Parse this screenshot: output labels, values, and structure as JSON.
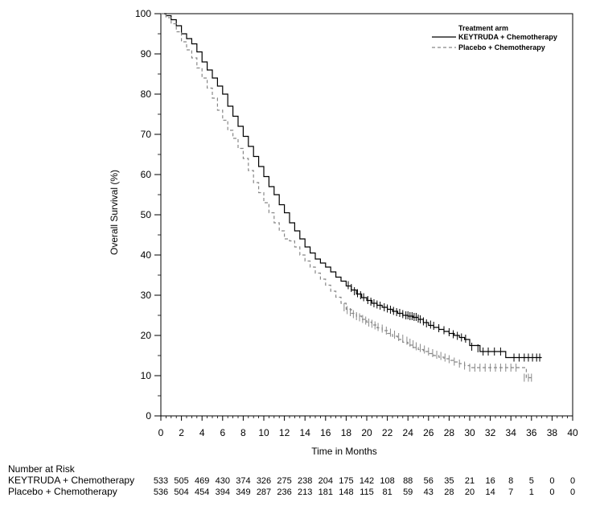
{
  "chart_data": {
    "type": "line",
    "subtype": "kaplan-meier",
    "xlabel": "Time in Months",
    "ylabel": "Overall Survival (%)",
    "xlim": [
      0,
      40
    ],
    "ylim": [
      0,
      100
    ],
    "xticks": [
      0,
      2,
      4,
      6,
      8,
      10,
      12,
      14,
      16,
      18,
      20,
      22,
      24,
      26,
      28,
      30,
      32,
      34,
      36,
      38,
      40
    ],
    "yticks": [
      0,
      10,
      20,
      30,
      40,
      50,
      60,
      70,
      80,
      90,
      100
    ],
    "legend": {
      "title": "Treatment arm",
      "placement": "top-right"
    },
    "series": [
      {
        "name": "KEYTRUDA + Chemotherapy",
        "color": "#000000",
        "line_style": "solid",
        "x": [
          0,
          0.5,
          1,
          1.5,
          2,
          2.5,
          3,
          3.5,
          4,
          4.5,
          5,
          5.5,
          6,
          6.5,
          7,
          7.5,
          8,
          8.5,
          9,
          9.5,
          10,
          10.5,
          11,
          11.5,
          12,
          12.5,
          13,
          13.5,
          14,
          14.5,
          15,
          15.5,
          16,
          16.5,
          17,
          17.5,
          18,
          18.5,
          19,
          19.5,
          20,
          20.5,
          21,
          21.5,
          22,
          22.5,
          23,
          23.5,
          24,
          24.5,
          25,
          25.5,
          26,
          26.5,
          27,
          27.5,
          28,
          28.5,
          29,
          29.5,
          30,
          31,
          32,
          33,
          33.5,
          34,
          35,
          36,
          37
        ],
        "y": [
          100,
          99.5,
          98.5,
          97,
          95,
          93.8,
          92.5,
          90.5,
          88,
          86,
          84,
          82,
          80,
          77,
          74.5,
          72,
          69.5,
          67,
          64.5,
          62,
          59.5,
          57,
          55,
          52.5,
          50.5,
          48,
          46,
          44,
          42,
          40.5,
          39,
          38,
          37,
          35.8,
          34.5,
          33.5,
          32.3,
          31.3,
          30.3,
          29.4,
          28.7,
          28,
          27.5,
          27,
          26.5,
          26,
          25.5,
          25,
          24.8,
          24.5,
          24,
          23.2,
          22.5,
          22,
          21.5,
          21,
          20.5,
          20,
          19.5,
          19,
          17.5,
          16,
          16,
          16,
          14.5,
          14.5,
          14.5,
          14.5,
          14.5
        ],
        "censor_x": [
          18.2,
          18.5,
          18.8,
          19.1,
          19.4,
          19.7,
          20.1,
          20.4,
          20.7,
          21.0,
          21.3,
          21.7,
          22.0,
          22.3,
          22.6,
          22.9,
          23.2,
          23.5,
          23.8,
          24.0,
          24.2,
          24.4,
          24.6,
          24.8,
          25.0,
          25.2,
          25.5,
          25.8,
          26.2,
          26.5,
          27.0,
          27.5,
          28.0,
          28.4,
          28.8,
          29.2,
          29.6,
          30.2,
          30.8,
          31.3,
          31.8,
          32.4,
          33.0,
          34.3,
          34.8,
          35.3,
          35.7,
          36.1,
          36.5,
          36.8
        ],
        "censor_y": [
          32.5,
          31.8,
          31.0,
          30.5,
          30.0,
          29.5,
          28.8,
          28.4,
          28.0,
          27.7,
          27.4,
          27.0,
          26.7,
          26.4,
          26.1,
          25.8,
          25.6,
          25.3,
          25.0,
          25.0,
          24.8,
          24.8,
          24.6,
          24.6,
          24.2,
          24.0,
          23.5,
          23.0,
          22.7,
          22.4,
          21.8,
          21.3,
          20.8,
          20.3,
          19.9,
          19.5,
          19.2,
          17.2,
          16.8,
          16.0,
          16.0,
          16.0,
          16.0,
          14.5,
          14.5,
          14.5,
          14.5,
          14.5,
          14.5,
          14.5
        ]
      },
      {
        "name": "Placebo + Chemotherapy",
        "color": "#888888",
        "line_style": "dashed",
        "x": [
          0,
          0.5,
          1,
          1.5,
          2,
          2.5,
          3,
          3.5,
          4,
          4.5,
          5,
          5.5,
          6,
          6.5,
          7,
          7.5,
          8,
          8.5,
          9,
          9.5,
          10,
          10.5,
          11,
          11.5,
          12,
          12.5,
          13,
          13.5,
          14,
          14.5,
          15,
          15.5,
          16,
          16.5,
          17,
          17.5,
          18,
          18.5,
          19,
          19.5,
          20,
          20.5,
          21,
          21.5,
          22,
          22.5,
          23,
          23.5,
          24,
          24.5,
          25,
          25.5,
          26,
          26.5,
          27,
          27.5,
          28,
          28.5,
          29,
          29.5,
          30,
          31,
          32,
          33,
          34,
          35,
          35.5,
          36
        ],
        "y": [
          100,
          99,
          97.5,
          95.5,
          93,
          91,
          89,
          86.5,
          84,
          81.5,
          79,
          76,
          73.5,
          71,
          69,
          66.5,
          64,
          61,
          58,
          55.5,
          53,
          50.5,
          48,
          46,
          44,
          43.5,
          42,
          40,
          38.5,
          37,
          35.5,
          34,
          32.5,
          31,
          29.5,
          28,
          26.5,
          25.5,
          24.8,
          24,
          23.3,
          22.6,
          21.9,
          21.2,
          20.5,
          19.8,
          19,
          18.3,
          17.6,
          17,
          16.5,
          16,
          15.5,
          15,
          14.6,
          14.2,
          13.8,
          13.4,
          13,
          12.5,
          12,
          12,
          12,
          12,
          12,
          12,
          9.5,
          9.5
        ],
        "censor_x": [
          17.8,
          18.1,
          18.4,
          18.7,
          19.0,
          19.3,
          19.6,
          19.9,
          20.2,
          20.5,
          20.8,
          21.1,
          21.5,
          21.9,
          22.3,
          22.7,
          23.1,
          23.5,
          23.9,
          24.2,
          24.5,
          24.8,
          25.2,
          25.6,
          26.0,
          26.4,
          26.8,
          27.2,
          27.6,
          28.0,
          28.5,
          29.0,
          29.5,
          30.0,
          30.5,
          31.0,
          31.5,
          32.0,
          32.5,
          33.0,
          33.5,
          34.0,
          34.5,
          35.3,
          35.7,
          36.0
        ],
        "censor_y": [
          27.0,
          26.3,
          25.8,
          25.3,
          24.8,
          24.5,
          24.1,
          23.7,
          23.2,
          22.9,
          22.5,
          22.1,
          21.7,
          21.2,
          20.7,
          20.2,
          19.6,
          19.2,
          18.7,
          18.2,
          17.8,
          17.3,
          16.9,
          16.5,
          16.0,
          15.6,
          15.2,
          14.9,
          14.5,
          14.1,
          13.5,
          13.0,
          12.5,
          12.0,
          12.0,
          12.0,
          12.0,
          12.0,
          12.0,
          12.0,
          12.0,
          12.0,
          12.0,
          9.5,
          9.5,
          9.5
        ]
      }
    ]
  },
  "risk_table": {
    "title": "Number at Risk",
    "rows": [
      {
        "label": "KEYTRUDA + Chemotherapy",
        "values": [
          "533",
          "505",
          "469",
          "430",
          "374",
          "326",
          "275",
          "238",
          "204",
          "175",
          "142",
          "108",
          "88",
          "56",
          "35",
          "21",
          "16",
          "8",
          "5",
          "0",
          "0"
        ]
      },
      {
        "label": "Placebo + Chemotherapy",
        "values": [
          "536",
          "504",
          "454",
          "394",
          "349",
          "287",
          "236",
          "213",
          "181",
          "148",
          "115",
          "81",
          "59",
          "43",
          "28",
          "20",
          "14",
          "7",
          "1",
          "0",
          "0"
        ]
      }
    ]
  }
}
